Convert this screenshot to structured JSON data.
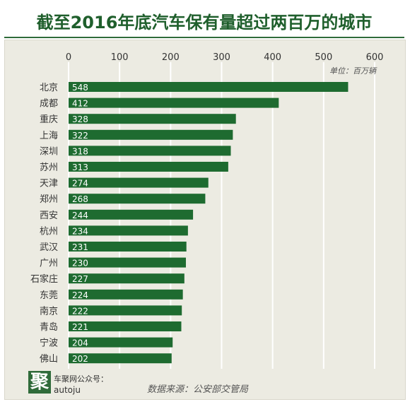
{
  "header": {
    "title": "截至2016年底汽车保有量超过两百万的城市"
  },
  "chart_data": {
    "type": "bar",
    "orientation": "horizontal",
    "unit_label": "单位：百万辆",
    "categories": [
      "北京",
      "成都",
      "重庆",
      "上海",
      "深圳",
      "苏州",
      "天津",
      "郑州",
      "西安",
      "杭州",
      "武汉",
      "广州",
      "石家庄",
      "东莞",
      "南京",
      "青岛",
      "宁波",
      "佛山"
    ],
    "values": [
      548,
      412,
      328,
      322,
      318,
      313,
      274,
      268,
      244,
      234,
      231,
      230,
      227,
      224,
      222,
      221,
      204,
      202
    ],
    "xticks": [
      "0",
      "100",
      "200",
      "300",
      "400",
      "500",
      "600"
    ],
    "xlim": [
      0,
      600
    ],
    "grid": true,
    "bar_color": "#1e6b30",
    "value_label_color": "#ffffff"
  },
  "footer": {
    "logo_char": "聚",
    "brand": "车聚网公众号：",
    "handle": "autoju",
    "source": "数据来源：公安部交管局"
  }
}
